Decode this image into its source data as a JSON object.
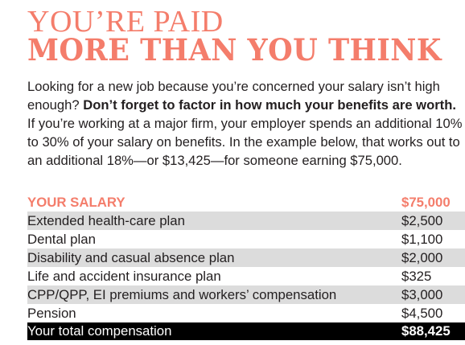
{
  "title": {
    "line1": "YOU’RE PAID",
    "line2": "MORE THAN YOU THINK"
  },
  "intro": {
    "part1": "Looking for a new job because you’re concerned your salary isn’t high enough? ",
    "bold": "Don’t forget to factor in how much your benefits are worth.",
    "part2": " If you’re working at a major firm, your employer spends an additional 10% to 30% of your salary on benefits. In the example below, that works out to an additional 18%—or $13,425—for someone earning $75,000."
  },
  "table": {
    "header": {
      "label": "YOUR SALARY",
      "value": "$75,000"
    },
    "rows": [
      {
        "label": "Extended health-care plan",
        "value": "$2,500"
      },
      {
        "label": "Dental plan",
        "value": "$1,100"
      },
      {
        "label": "Disability and casual absence plan",
        "value": "$2,000"
      },
      {
        "label": "Life and accident insurance plan",
        "value": "$325"
      },
      {
        "label": "CPP/QPP, EI premiums and workers’ compensation",
        "value": "$3,000"
      },
      {
        "label": "Pension",
        "value": "$4,500"
      }
    ],
    "total": {
      "label": "Your total compensation",
      "value": "$88,425"
    }
  },
  "colors": {
    "accent": "#f47d6b",
    "row_shade": "#dcdcdc",
    "total_bg": "#000000"
  }
}
